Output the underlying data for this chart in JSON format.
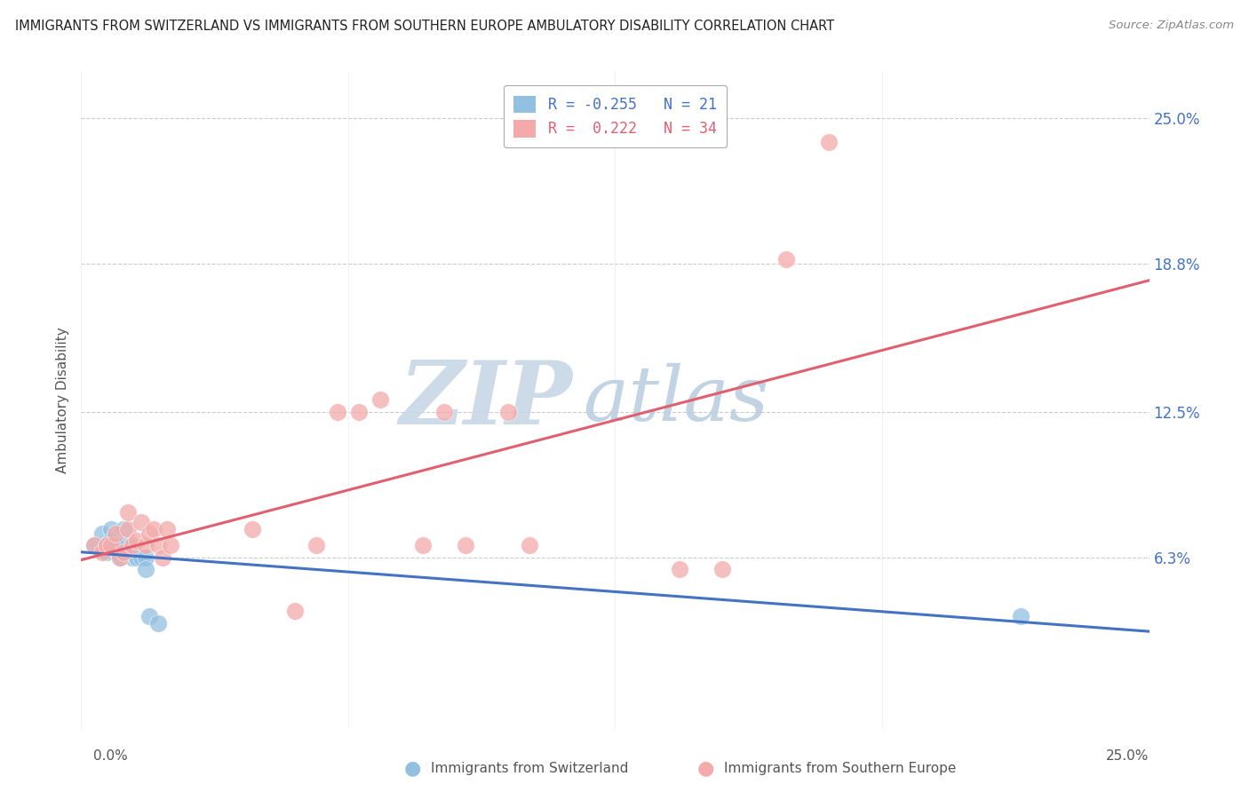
{
  "title": "IMMIGRANTS FROM SWITZERLAND VS IMMIGRANTS FROM SOUTHERN EUROPE AMBULATORY DISABILITY CORRELATION CHART",
  "source": "Source: ZipAtlas.com",
  "ylabel": "Ambulatory Disability",
  "ytick_labels": [
    "6.3%",
    "12.5%",
    "18.8%",
    "25.0%"
  ],
  "ytick_vals": [
    0.063,
    0.125,
    0.188,
    0.25
  ],
  "xlim": [
    0.0,
    0.25
  ],
  "ylim": [
    -0.01,
    0.27
  ],
  "legend_blue_R": "-0.255",
  "legend_blue_N": "21",
  "legend_pink_R": "0.222",
  "legend_pink_N": "34",
  "blue_label": "Immigrants from Switzerland",
  "pink_label": "Immigrants from Southern Europe",
  "blue_color": "#92C0E0",
  "pink_color": "#F4AAAA",
  "blue_line_color": "#4472C4",
  "pink_line_color": "#E06070",
  "watermark_zip_color": "#C8D8EC",
  "watermark_atlas_color": "#C0D5E8",
  "background_color": "#ffffff",
  "grid_color": "#CCCCCC",
  "blue_x": [
    0.003,
    0.005,
    0.006,
    0.006,
    0.007,
    0.007,
    0.008,
    0.009,
    0.009,
    0.01,
    0.01,
    0.011,
    0.012,
    0.012,
    0.013,
    0.014,
    0.015,
    0.015,
    0.016,
    0.018,
    0.22
  ],
  "blue_y": [
    0.068,
    0.073,
    0.068,
    0.065,
    0.075,
    0.07,
    0.068,
    0.065,
    0.063,
    0.075,
    0.068,
    0.065,
    0.068,
    0.063,
    0.063,
    0.063,
    0.063,
    0.058,
    0.038,
    0.035,
    0.038
  ],
  "pink_x": [
    0.003,
    0.005,
    0.006,
    0.007,
    0.008,
    0.009,
    0.01,
    0.011,
    0.011,
    0.012,
    0.013,
    0.014,
    0.015,
    0.016,
    0.017,
    0.018,
    0.019,
    0.02,
    0.021,
    0.04,
    0.05,
    0.055,
    0.06,
    0.065,
    0.07,
    0.08,
    0.085,
    0.09,
    0.1,
    0.105,
    0.14,
    0.15,
    0.165,
    0.175
  ],
  "pink_y": [
    0.068,
    0.065,
    0.068,
    0.068,
    0.073,
    0.063,
    0.065,
    0.075,
    0.082,
    0.068,
    0.07,
    0.078,
    0.068,
    0.073,
    0.075,
    0.068,
    0.063,
    0.075,
    0.068,
    0.075,
    0.04,
    0.068,
    0.125,
    0.125,
    0.13,
    0.068,
    0.125,
    0.068,
    0.125,
    0.068,
    0.058,
    0.058,
    0.19,
    0.24
  ]
}
